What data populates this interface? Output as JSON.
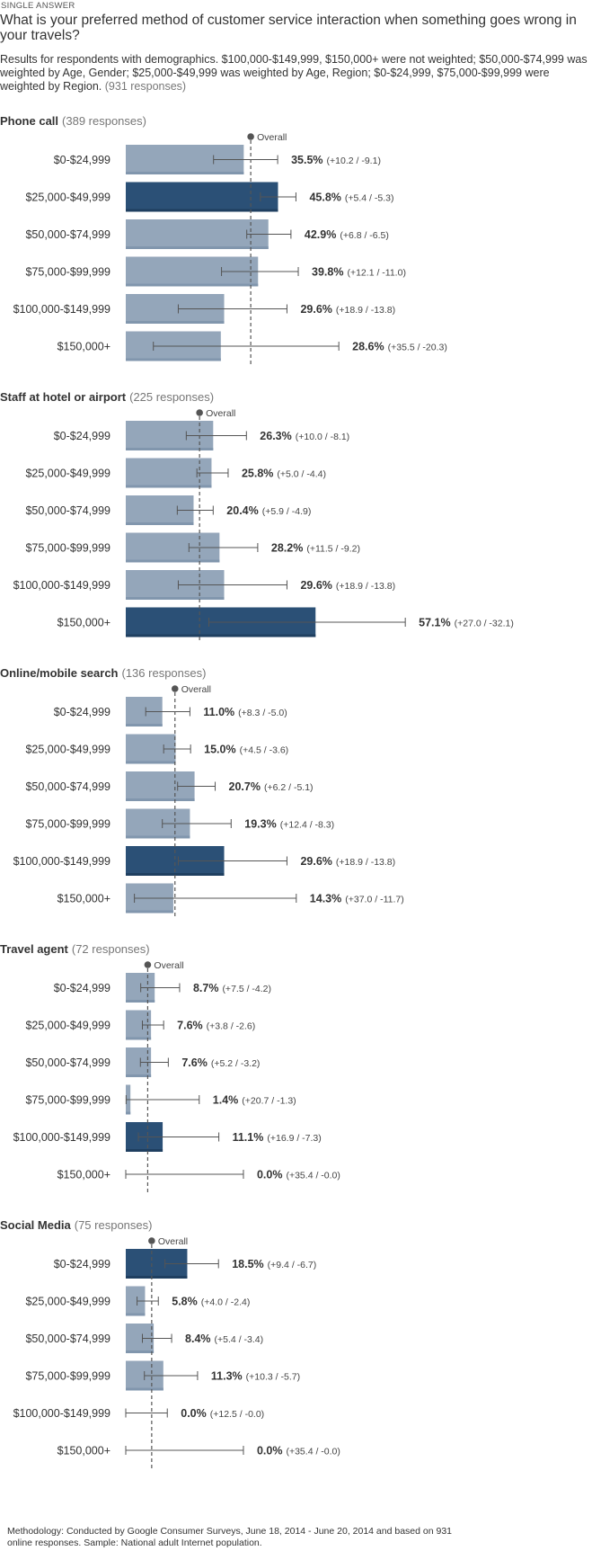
{
  "header": {
    "question_type": "SINGLE ANSWER",
    "question": "What is your preferred method of customer service interaction when something goes wrong in your travels?",
    "subtitle": "Results for respondents with demographics. $100,000-$149,999, $150,000+ were not weighted; $50,000-$74,999 was weighted by Age, Gender; $25,000-$49,999 was weighted by Age, Region; $0-$24,999, $75,000-$99,999 were weighted by Region.",
    "response_count": "(931 responses)"
  },
  "colors": {
    "bar": "#94a6ba",
    "highlight": "#2b5076",
    "error": "#555555",
    "overall": "#555555"
  },
  "overall_label": "Overall",
  "chart_data": [
    {
      "type": "bar",
      "orientation": "horizontal",
      "title": "Phone call",
      "responses": "(389 responses)",
      "overall": 37.6,
      "highlight_index": 1,
      "categories": [
        "$0-$24,999",
        "$25,000-$49,999",
        "$50,000-$74,999",
        "$75,000-$99,999",
        "$100,000-$149,999",
        "$150,000+"
      ],
      "values": [
        35.5,
        45.8,
        42.9,
        39.8,
        29.6,
        28.6
      ],
      "value_labels": [
        "35.5%",
        "45.8%",
        "42.9%",
        "39.8%",
        "29.6%",
        "28.6%"
      ],
      "error_plus": [
        10.2,
        5.4,
        6.8,
        12.1,
        18.9,
        35.5
      ],
      "error_minus": [
        9.1,
        5.3,
        6.5,
        11.0,
        13.8,
        20.3
      ],
      "error_labels": [
        "(+10.2 / -9.1)",
        "(+5.4 / -5.3)",
        "(+6.8 / -6.5)",
        "(+12.1 / -11.0)",
        "(+18.9 / -13.8)",
        "(+35.5 / -20.3)"
      ]
    },
    {
      "type": "bar",
      "orientation": "horizontal",
      "title": "Staff at hotel or airport",
      "responses": "(225 responses)",
      "overall": 22.2,
      "highlight_index": 5,
      "categories": [
        "$0-$24,999",
        "$25,000-$49,999",
        "$50,000-$74,999",
        "$75,000-$99,999",
        "$100,000-$149,999",
        "$150,000+"
      ],
      "values": [
        26.3,
        25.8,
        20.4,
        28.2,
        29.6,
        57.1
      ],
      "value_labels": [
        "26.3%",
        "25.8%",
        "20.4%",
        "28.2%",
        "29.6%",
        "57.1%"
      ],
      "error_plus": [
        10.0,
        5.0,
        5.9,
        11.5,
        18.9,
        27.0
      ],
      "error_minus": [
        8.1,
        4.4,
        4.9,
        9.2,
        13.8,
        32.1
      ],
      "error_labels": [
        "(+10.0 / -8.1)",
        "(+5.0 / -4.4)",
        "(+5.9 / -4.9)",
        "(+11.5 / -9.2)",
        "(+18.9 / -13.8)",
        "(+27.0 / -32.1)"
      ]
    },
    {
      "type": "bar",
      "orientation": "horizontal",
      "title": "Online/mobile search",
      "responses": "(136 responses)",
      "overall": 14.8,
      "highlight_index": 4,
      "categories": [
        "$0-$24,999",
        "$25,000-$49,999",
        "$50,000-$74,999",
        "$75,000-$99,999",
        "$100,000-$149,999",
        "$150,000+"
      ],
      "values": [
        11.0,
        15.0,
        20.7,
        19.3,
        29.6,
        14.3
      ],
      "value_labels": [
        "11.0%",
        "15.0%",
        "20.7%",
        "19.3%",
        "29.6%",
        "14.3%"
      ],
      "error_plus": [
        8.3,
        4.5,
        6.2,
        12.4,
        18.9,
        37.0
      ],
      "error_minus": [
        5.0,
        3.6,
        5.1,
        8.3,
        13.8,
        11.7
      ],
      "error_labels": [
        "(+8.3 / -5.0)",
        "(+4.5 / -3.6)",
        "(+6.2 / -5.1)",
        "(+12.4 / -8.3)",
        "(+18.9 / -13.8)",
        "(+37.0 / -11.7)"
      ]
    },
    {
      "type": "bar",
      "orientation": "horizontal",
      "title": "Travel agent",
      "responses": "(72 responses)",
      "overall": 6.6,
      "highlight_index": 4,
      "categories": [
        "$0-$24,999",
        "$25,000-$49,999",
        "$50,000-$74,999",
        "$75,000-$99,999",
        "$100,000-$149,999",
        "$150,000+"
      ],
      "values": [
        8.7,
        7.6,
        7.6,
        1.4,
        11.1,
        0.0
      ],
      "value_labels": [
        "8.7%",
        "7.6%",
        "7.6%",
        "1.4%",
        "11.1%",
        "0.0%"
      ],
      "error_plus": [
        7.5,
        3.8,
        5.2,
        20.7,
        16.9,
        35.4
      ],
      "error_minus": [
        4.2,
        2.6,
        3.2,
        1.3,
        7.3,
        0.0
      ],
      "error_labels": [
        "(+7.5 / -4.2)",
        "(+3.8 / -2.6)",
        "(+5.2 / -3.2)",
        "(+20.7 / -1.3)",
        "(+16.9 / -7.3)",
        "(+35.4 / -0.0)"
      ]
    },
    {
      "type": "bar",
      "orientation": "horizontal",
      "title": "Social Media",
      "responses": "(75 responses)",
      "overall": 7.8,
      "highlight_index": 0,
      "categories": [
        "$0-$24,999",
        "$25,000-$49,999",
        "$50,000-$74,999",
        "$75,000-$99,999",
        "$100,000-$149,999",
        "$150,000+"
      ],
      "values": [
        18.5,
        5.8,
        8.4,
        11.3,
        0.0,
        0.0
      ],
      "value_labels": [
        "18.5%",
        "5.8%",
        "8.4%",
        "11.3%",
        "0.0%",
        "0.0%"
      ],
      "error_plus": [
        9.4,
        4.0,
        5.4,
        10.3,
        12.5,
        35.4
      ],
      "error_minus": [
        6.7,
        2.4,
        3.4,
        5.7,
        0.0,
        0.0
      ],
      "error_labels": [
        "(+9.4 / -6.7)",
        "(+4.0 / -2.4)",
        "(+5.4 / -3.4)",
        "(+10.3 / -5.7)",
        "(+12.5 / -0.0)",
        "(+35.4 / -0.0)"
      ]
    }
  ],
  "footer": {
    "methodology": "Methodology: Conducted by Google Consumer Surveys, June 18, 2014 - June 20, 2014 and based on 931 online responses. Sample: National adult Internet population."
  }
}
